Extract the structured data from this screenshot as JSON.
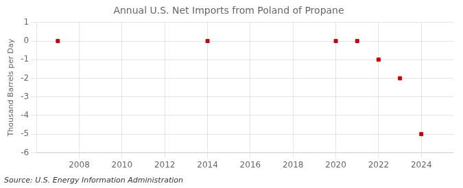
{
  "chart_data": {
    "type": "scatter",
    "title": "Annual U.S. Net Imports from Poland of Propane",
    "ylabel": "Thousand Barrels per Day",
    "annotations": [
      "Source: U.S. Energy Information Administration"
    ],
    "x": [
      2007,
      2014,
      2020,
      2021,
      2022,
      2023,
      2024
    ],
    "values": [
      0,
      0,
      0,
      0,
      -1,
      -2,
      -5
    ],
    "color": "#cc0000",
    "marker": "square",
    "xlim": [
      2006,
      2025.5
    ],
    "ylim": [
      -6,
      1
    ],
    "xticks": [
      2008,
      2010,
      2012,
      2014,
      2016,
      2018,
      2020,
      2022,
      2024
    ],
    "yticks": [
      1,
      0,
      -1,
      -2,
      -3,
      -4,
      -5,
      -6
    ],
    "grid": true
  }
}
